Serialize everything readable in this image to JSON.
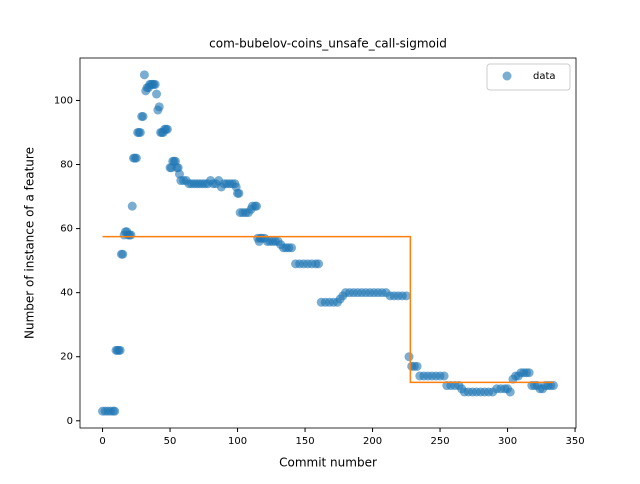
{
  "chart_data": {
    "type": "scatter",
    "title": "com-bubelov-coins_unsafe_call-sigmoid",
    "x_label": "Commit number",
    "y_label": "Number of instance of a feature",
    "xlim": [
      -16.7,
      350.7
    ],
    "ylim": [
      -2.25,
      113.25
    ],
    "xticks": [
      0,
      50,
      100,
      150,
      200,
      250,
      300,
      350
    ],
    "yticks": [
      0,
      20,
      40,
      60,
      80,
      100
    ],
    "legend": "upper right",
    "series": [
      {
        "name": "data",
        "color": "#1f77b4",
        "kind": "scatter",
        "x": [
          0,
          2,
          4,
          6,
          8,
          9,
          10,
          11,
          12,
          13,
          14,
          15,
          16,
          17,
          18,
          19,
          20,
          21,
          22,
          23,
          24,
          25,
          26,
          27,
          28,
          29,
          30,
          31,
          32,
          33,
          34,
          35,
          36,
          37,
          38,
          39,
          40,
          41,
          42,
          43,
          44,
          45,
          46,
          47,
          48,
          50,
          51,
          52,
          53,
          54,
          55,
          56,
          57,
          58,
          60,
          62,
          64,
          66,
          68,
          70,
          72,
          74,
          76,
          78,
          80,
          82,
          84,
          86,
          88,
          90,
          92,
          94,
          96,
          98,
          99,
          100,
          101,
          102,
          104,
          106,
          108,
          110,
          111,
          113,
          114,
          115,
          116,
          117,
          118,
          120,
          122,
          124,
          126,
          128,
          130,
          132,
          134,
          136,
          138,
          140,
          143,
          146,
          149,
          152,
          155,
          158,
          160,
          162,
          165,
          168,
          171,
          174,
          176,
          178,
          180,
          183,
          186,
          189,
          192,
          195,
          198,
          201,
          204,
          207,
          210,
          213,
          216,
          219,
          222,
          225,
          227,
          229,
          231,
          233,
          235,
          238,
          241,
          244,
          247,
          250,
          253,
          255,
          258,
          261,
          264,
          266,
          268,
          271,
          274,
          277,
          280,
          283,
          286,
          289,
          292,
          295,
          298,
          300,
          302,
          304,
          306,
          308,
          310,
          312,
          314,
          316,
          318,
          320,
          322,
          324,
          326,
          328,
          330,
          332,
          334
        ],
        "values": [
          3,
          3,
          3,
          3,
          3,
          3,
          22,
          22,
          22,
          22,
          52,
          52,
          58,
          59,
          59,
          58,
          58,
          58,
          67,
          82,
          82,
          82,
          90,
          90,
          90,
          95,
          95,
          108,
          103,
          104,
          104,
          105,
          105,
          105,
          105,
          105,
          102,
          97,
          98,
          90,
          90,
          90,
          91,
          91,
          91,
          79,
          79,
          81,
          81,
          81,
          79,
          79,
          77,
          75,
          75,
          75,
          74,
          74,
          74,
          74,
          74,
          74,
          74,
          74,
          75,
          74,
          74,
          75,
          73,
          74,
          74,
          74,
          74,
          74,
          73,
          71,
          71,
          65,
          65,
          65,
          65,
          66,
          67,
          67,
          67,
          57,
          56,
          57,
          57,
          57,
          56,
          56,
          56,
          56,
          56,
          55,
          54,
          54,
          54,
          54,
          49,
          49,
          49,
          49,
          49,
          49,
          49,
          37,
          37,
          37,
          37,
          37,
          38,
          39,
          40,
          40,
          40,
          40,
          40,
          40,
          40,
          40,
          40,
          40,
          40,
          39,
          39,
          39,
          39,
          39,
          20,
          17,
          17,
          17,
          14,
          14,
          14,
          14,
          14,
          14,
          14,
          11,
          11,
          11,
          11,
          10,
          9,
          9,
          9,
          9,
          9,
          9,
          9,
          9,
          10,
          10,
          10,
          10,
          9,
          13,
          14,
          14,
          15,
          15,
          15,
          15,
          11,
          11,
          11,
          10,
          10,
          11,
          11,
          11,
          11
        ]
      },
      {
        "color": "#ff7f0e",
        "kind": "line",
        "x": [
          0,
          228,
          228,
          334
        ],
        "values": [
          57.5,
          57.5,
          12,
          12
        ]
      }
    ]
  }
}
